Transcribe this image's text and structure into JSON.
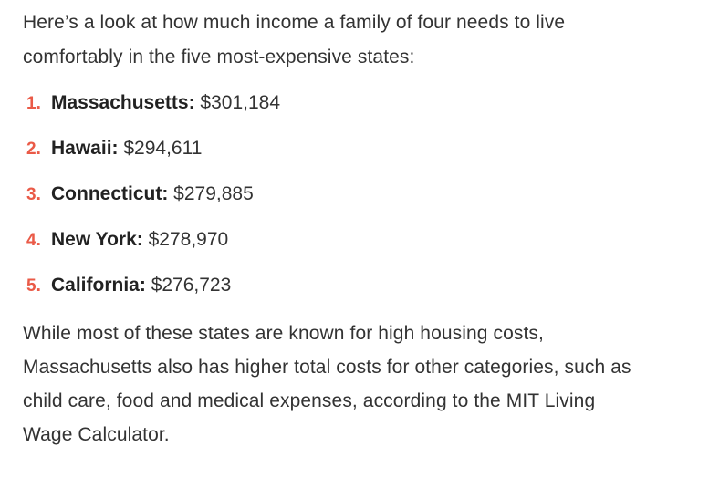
{
  "intro": {
    "line1": "Here’s a look at how much income a family of four needs to live",
    "line2": "comfortably in the five most-expensive states:"
  },
  "list": {
    "items": [
      {
        "number": "1.",
        "name": "Massachusetts:",
        "value": "$301,184"
      },
      {
        "number": "2.",
        "name": "Hawaii:",
        "value": "$294,611"
      },
      {
        "number": "3.",
        "name": "Connecticut:",
        "value": "$279,885"
      },
      {
        "number": "4.",
        "name": "New York:",
        "value": "$278,970"
      },
      {
        "number": "5.",
        "name": "California:",
        "value": "$276,723"
      }
    ]
  },
  "outro": {
    "line1": "While most of these states are known for high housing costs,",
    "line2": "Massachusetts also has higher total costs for other categories, such as",
    "line3": "child care, food and medical expenses, according to the MIT Living",
    "line4": "Wage Calculator."
  },
  "colors": {
    "accent": "#ea5a47",
    "text": "#333333"
  }
}
